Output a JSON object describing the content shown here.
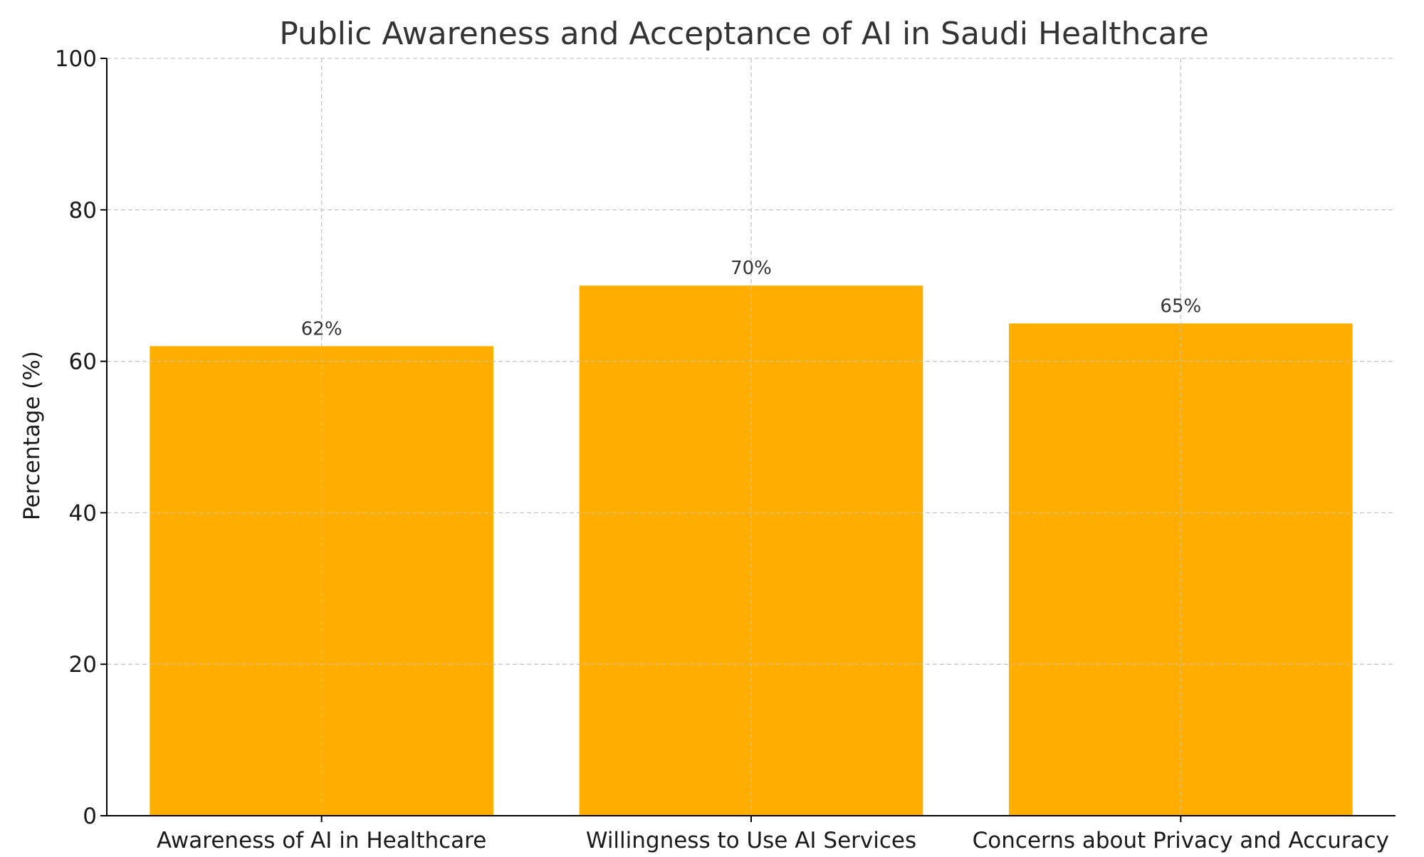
{
  "chart_data": {
    "type": "bar",
    "title": "Public Awareness and Acceptance of AI in Saudi Healthcare",
    "xlabel": "",
    "ylabel": "Percentage (%)",
    "categories": [
      "Awareness of AI in Healthcare",
      "Willingness to Use AI Services",
      "Concerns about Privacy and Accuracy"
    ],
    "values": [
      62,
      70,
      65
    ],
    "value_labels": [
      "62%",
      "70%",
      "65%"
    ],
    "ylim": [
      0,
      100
    ],
    "yticks": [
      0,
      20,
      40,
      60,
      80,
      100
    ],
    "grid": true,
    "bar_color": "#FFAE00"
  }
}
